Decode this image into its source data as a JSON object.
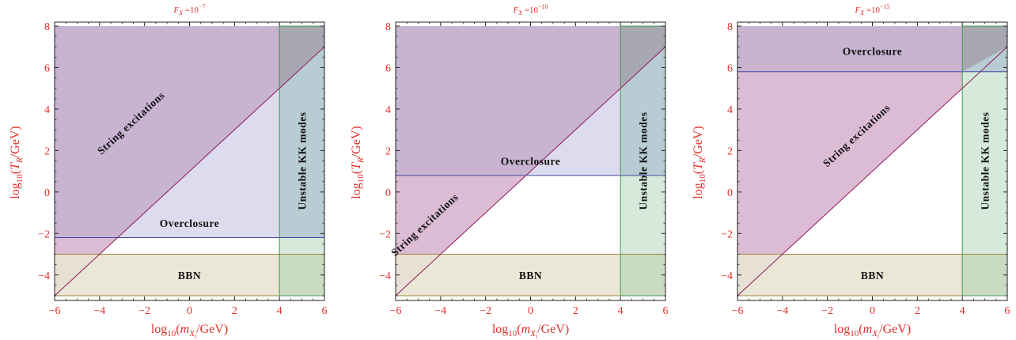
{
  "chart_data": [
    {
      "type": "area",
      "title": "F_X = 10^-7",
      "title_main": "F",
      "title_sub": "X",
      "title_eq": " =10",
      "title_exp": "−7",
      "xlabel": "log10(m_Xi/GeV)",
      "ylabel": "log10(T_R/GeV)",
      "xlim": [
        -6,
        6
      ],
      "ylim": [
        -5,
        8
      ],
      "xticks": [
        "−6",
        "−4",
        "−2",
        "0",
        "2",
        "4",
        "6"
      ],
      "yticks": [
        "−4",
        "−2",
        "0",
        "2",
        "4",
        "6",
        "8"
      ],
      "regions": {
        "string_excitations": {
          "label": "String excitations",
          "line_points": [
            [
              -6,
              -5
            ],
            [
              6,
              7
            ]
          ]
        },
        "overclosure": {
          "label": "Overclosure",
          "y_boundary": -2.2
        },
        "bbn": {
          "label": "BBN",
          "y_range": [
            -5,
            -3
          ]
        },
        "unstable_kk": {
          "label": "Unstable KK modes",
          "x_range": [
            4,
            6
          ]
        }
      }
    },
    {
      "type": "area",
      "title": "F_X = 10^-10",
      "title_main": "F",
      "title_sub": "X",
      "title_eq": " =10",
      "title_exp": "−10",
      "xlabel": "log10(m_Xi/GeV)",
      "ylabel": "log10(T_R/GeV)",
      "xlim": [
        -6,
        6
      ],
      "ylim": [
        -5,
        8
      ],
      "xticks": [
        "−6",
        "−4",
        "−2",
        "0",
        "2",
        "4",
        "6"
      ],
      "yticks": [
        "−4",
        "−2",
        "0",
        "2",
        "4",
        "6",
        "8"
      ],
      "regions": {
        "string_excitations": {
          "label": "String excitations",
          "line_points": [
            [
              -6,
              -5
            ],
            [
              6,
              7
            ]
          ]
        },
        "overclosure": {
          "label": "Overclosure",
          "y_boundary": 0.8
        },
        "bbn": {
          "label": "BBN",
          "y_range": [
            -5,
            -3
          ]
        },
        "unstable_kk": {
          "label": "Unstable KK modes",
          "x_range": [
            4,
            6
          ]
        }
      }
    },
    {
      "type": "area",
      "title": "F_X = 10^-15",
      "title_main": "F",
      "title_sub": "X",
      "title_eq": " =10",
      "title_exp": "−15",
      "xlabel": "log10(m_Xi/GeV)",
      "ylabel": "log10(T_R/GeV)",
      "xlim": [
        -6,
        6
      ],
      "ylim": [
        -5,
        8
      ],
      "xticks": [
        "−6",
        "−4",
        "−2",
        "0",
        "2",
        "4",
        "6"
      ],
      "yticks": [
        "−4",
        "−2",
        "0",
        "2",
        "4",
        "6",
        "8"
      ],
      "regions": {
        "string_excitations": {
          "label": "String excitations",
          "line_points": [
            [
              -6,
              -5
            ],
            [
              6,
              7
            ]
          ]
        },
        "overclosure": {
          "label": "Overclosure",
          "y_boundary": 5.8
        },
        "bbn": {
          "label": "BBN",
          "y_range": [
            -5,
            -3
          ]
        },
        "unstable_kk": {
          "label": "Unstable KK modes",
          "x_range": [
            4,
            6
          ]
        }
      }
    }
  ],
  "colors": {
    "text_red": "#e0302a",
    "string_fill": "#dcbcd4",
    "overclosure_fill": "#dcdcee",
    "overlap_fill": "#c8b3d1",
    "bbn_fill": "#e9e4d3",
    "kk_fill": "#d5eadb",
    "kk_over_overlap": "#a8a8b3",
    "kk_over_overclosure": "#b8cdd3",
    "kk_over_bbn": "#c9dcc2",
    "string_line": "#8b1a5e",
    "overclosure_line": "#4548a8",
    "bbn_line": "#a2833a",
    "kk_line": "#3e9a4e"
  }
}
